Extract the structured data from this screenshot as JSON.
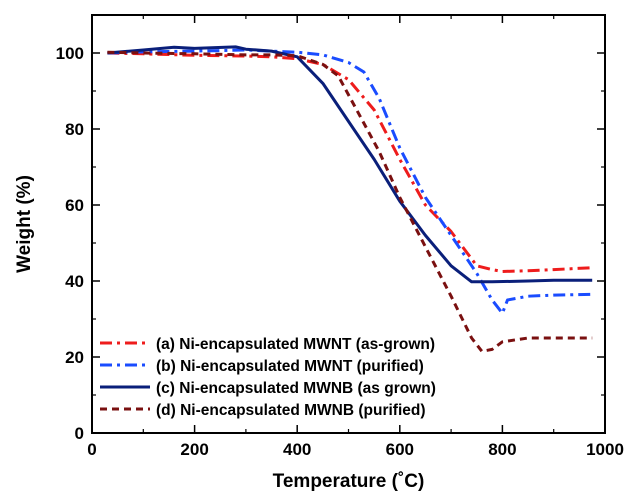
{
  "chart_data": {
    "type": "line",
    "xlabel": "Temperature (˚C)",
    "ylabel": "Weight (%)",
    "xlim": [
      0,
      1000
    ],
    "ylim": [
      0,
      110
    ],
    "xticks": [
      0,
      200,
      400,
      600,
      800,
      1000
    ],
    "yticks": [
      0,
      20,
      40,
      60,
      80,
      100
    ],
    "grid": false,
    "legend_position": "bottom-left",
    "series": [
      {
        "name": "(a) Ni-encapsulated MWNT (as-grown)",
        "color": "#ee1c1c",
        "dash": "dash-dot",
        "x": [
          30,
          100,
          200,
          300,
          350,
          400,
          450,
          500,
          550,
          600,
          650,
          700,
          750,
          780,
          800,
          850,
          900,
          975
        ],
        "y": [
          100,
          99.8,
          99.4,
          99.2,
          99,
          98.5,
          97,
          93,
          85,
          72,
          60,
          53,
          44,
          43,
          42.5,
          42.7,
          43,
          43.5
        ]
      },
      {
        "name": "(b) Ni-encapsulated MWNT (purified)",
        "color": "#1a4cff",
        "dash": "dash-dot",
        "x": [
          30,
          100,
          200,
          300,
          400,
          450,
          500,
          530,
          560,
          600,
          650,
          700,
          750,
          780,
          800,
          810,
          850,
          900,
          975
        ],
        "y": [
          100,
          100.3,
          100.5,
          100.8,
          100.2,
          99.5,
          97.5,
          95,
          88,
          75,
          62,
          52,
          42,
          35,
          31.5,
          35,
          36,
          36.3,
          36.5
        ]
      },
      {
        "name": "(c) Ni-encapsulated MWNB (as grown)",
        "color": "#0a1f7a",
        "dash": "solid",
        "x": [
          30,
          100,
          160,
          200,
          280,
          300,
          350,
          400,
          450,
          500,
          550,
          600,
          650,
          700,
          740,
          780,
          850,
          900,
          975
        ],
        "y": [
          100,
          100.8,
          101.5,
          101.2,
          101.6,
          101,
          100.5,
          99,
          92,
          82,
          72,
          61,
          52,
          44,
          39.8,
          39.8,
          40,
          40.2,
          40.2
        ]
      },
      {
        "name": "(d) Ni-encapsulated MWNB (purified)",
        "color": "#7a1010",
        "dash": "dash",
        "x": [
          30,
          100,
          200,
          300,
          350,
          400,
          450,
          480,
          520,
          560,
          600,
          650,
          700,
          740,
          760,
          780,
          800,
          850,
          900,
          975
        ],
        "y": [
          100.2,
          100,
          99.8,
          99.5,
          99.5,
          99.3,
          97,
          94,
          84,
          74,
          62,
          49,
          36,
          25,
          21.5,
          22,
          24,
          25,
          25,
          25
        ]
      }
    ]
  }
}
